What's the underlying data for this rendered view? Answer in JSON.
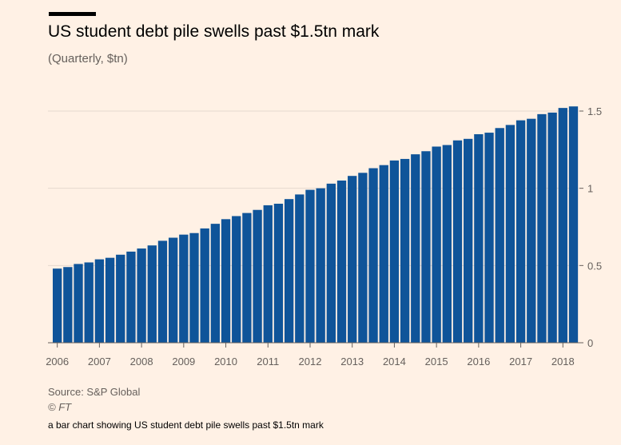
{
  "header": {
    "title": "US student debt pile swells past $1.5tn mark",
    "subtitle": "(Quarterly, $tn)"
  },
  "footer": {
    "source": "Source: S&P Global",
    "credit": "© FT",
    "caption": "a bar chart showing US student debt pile swells past $1.5tn mark"
  },
  "colors": {
    "background": "#fff1e5",
    "bar": "#0f5499",
    "grid": "#e6d9ce",
    "axis": "#66605c"
  },
  "chart_data": {
    "type": "bar",
    "title": "US student debt pile swells past $1.5tn mark",
    "subtitle": "(Quarterly, $tn)",
    "xlabel": "",
    "ylabel": "",
    "ylim": [
      0,
      1.5
    ],
    "y_ticks": [
      0,
      0.5,
      1,
      1.5
    ],
    "y_tick_labels": [
      "0",
      "0.5",
      "1",
      "1.5"
    ],
    "x_tick_labels": [
      "2006",
      "2007",
      "2008",
      "2009",
      "2010",
      "2011",
      "2012",
      "2013",
      "2014",
      "2015",
      "2016",
      "2017",
      "2018"
    ],
    "first_quarter": "2006 Q1",
    "grid": true,
    "y_axis_position": "right",
    "categories": [
      "2006 Q1",
      "2006 Q2",
      "2006 Q3",
      "2006 Q4",
      "2007 Q1",
      "2007 Q2",
      "2007 Q3",
      "2007 Q4",
      "2008 Q1",
      "2008 Q2",
      "2008 Q3",
      "2008 Q4",
      "2009 Q1",
      "2009 Q2",
      "2009 Q3",
      "2009 Q4",
      "2010 Q1",
      "2010 Q2",
      "2010 Q3",
      "2010 Q4",
      "2011 Q1",
      "2011 Q2",
      "2011 Q3",
      "2011 Q4",
      "2012 Q1",
      "2012 Q2",
      "2012 Q3",
      "2012 Q4",
      "2013 Q1",
      "2013 Q2",
      "2013 Q3",
      "2013 Q4",
      "2014 Q1",
      "2014 Q2",
      "2014 Q3",
      "2014 Q4",
      "2015 Q1",
      "2015 Q2",
      "2015 Q3",
      "2015 Q4",
      "2016 Q1",
      "2016 Q2",
      "2016 Q3",
      "2016 Q4",
      "2017 Q1",
      "2017 Q2",
      "2017 Q3",
      "2017 Q4",
      "2018 Q1",
      "2018 Q2"
    ],
    "values": [
      0.48,
      0.49,
      0.51,
      0.52,
      0.54,
      0.55,
      0.57,
      0.59,
      0.61,
      0.63,
      0.66,
      0.68,
      0.7,
      0.71,
      0.74,
      0.77,
      0.8,
      0.82,
      0.84,
      0.86,
      0.89,
      0.9,
      0.93,
      0.96,
      0.99,
      1.0,
      1.03,
      1.05,
      1.08,
      1.1,
      1.13,
      1.15,
      1.18,
      1.19,
      1.22,
      1.24,
      1.27,
      1.28,
      1.31,
      1.32,
      1.35,
      1.36,
      1.39,
      1.41,
      1.44,
      1.45,
      1.48,
      1.49,
      1.52,
      1.53
    ]
  }
}
